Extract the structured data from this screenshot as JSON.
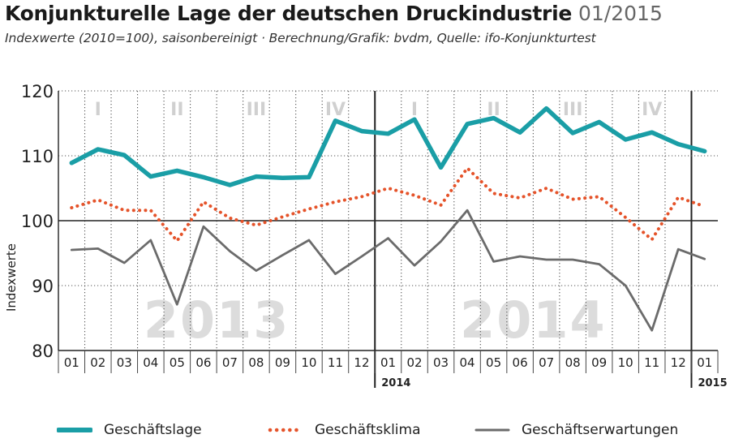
{
  "header": {
    "title": "Konjunkturelle Lage der deutschen Druckindustrie",
    "date": "01/2015",
    "subtitle": "Indexwerte (2010=100), saisonbereinigt  ·  Berechnung/Grafik: bvdm, Quelle: ifo-Konjunkturtest"
  },
  "chart_data": {
    "type": "line",
    "ylabel": "Indexwerte",
    "ylim": [
      80,
      120
    ],
    "yticks": [
      80,
      90,
      100,
      110,
      120
    ],
    "reference_line": 100,
    "grid": "dotted",
    "categories": [
      "01",
      "02",
      "03",
      "04",
      "05",
      "06",
      "07",
      "08",
      "09",
      "10",
      "11",
      "12",
      "01",
      "02",
      "03",
      "04",
      "05",
      "06",
      "07",
      "08",
      "09",
      "10",
      "11",
      "12",
      "01"
    ],
    "year_markers": [
      {
        "label": "2014",
        "index": 12
      },
      {
        "label": "2015",
        "index": 24
      }
    ],
    "quarter_labels": [
      {
        "label": "I",
        "start": 0
      },
      {
        "label": "II",
        "start": 3
      },
      {
        "label": "III",
        "start": 6
      },
      {
        "label": "IV",
        "start": 9
      },
      {
        "label": "I",
        "start": 12
      },
      {
        "label": "II",
        "start": 15
      },
      {
        "label": "III",
        "start": 18
      },
      {
        "label": "IV",
        "start": 21
      }
    ],
    "watermarks": [
      {
        "label": "2013",
        "start": 3,
        "end": 8
      },
      {
        "label": "2014",
        "start": 15,
        "end": 20
      }
    ],
    "series": [
      {
        "name": "Geschäftslage",
        "color": "#1a9ea6",
        "style": "solid",
        "values": [
          108.9,
          111.0,
          110.1,
          106.8,
          107.7,
          106.7,
          105.5,
          106.8,
          106.6,
          106.7,
          115.4,
          113.8,
          113.4,
          115.6,
          108.2,
          114.9,
          115.8,
          113.6,
          117.3,
          113.5,
          115.2,
          112.5,
          113.6,
          111.8,
          110.7
        ]
      },
      {
        "name": "Geschäftsklima",
        "color": "#e5532a",
        "style": "dotted",
        "values": [
          102.0,
          103.2,
          101.6,
          101.6,
          96.9,
          102.9,
          100.4,
          99.3,
          100.6,
          101.8,
          102.9,
          103.7,
          105.0,
          103.9,
          102.4,
          108.1,
          104.2,
          103.5,
          105.0,
          103.3,
          103.7,
          100.5,
          97.1,
          103.6,
          102.2
        ]
      },
      {
        "name": "Geschäftserwartungen",
        "color": "#6b6b6b",
        "style": "solid",
        "values": [
          95.5,
          95.7,
          93.5,
          97.0,
          87.1,
          99.1,
          95.3,
          92.3,
          94.7,
          97.0,
          91.8,
          94.5,
          97.3,
          93.1,
          96.8,
          101.6,
          93.7,
          94.5,
          94.0,
          94.0,
          93.3,
          90.0,
          83.1,
          95.6,
          94.1
        ]
      }
    ]
  }
}
